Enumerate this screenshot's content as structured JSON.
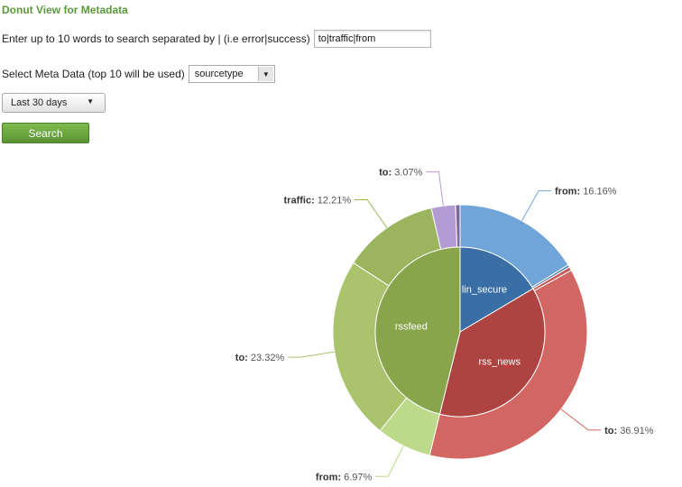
{
  "page": {
    "title": "Donut View for Metadata",
    "words_prompt": "Enter up to 10 words to search separated by | (i.e error|success)",
    "words_value": "to|traffic|from",
    "meta_prompt": "Select Meta Data (top 10 will be used)",
    "meta_selected": "sourcetype",
    "time_range": "Last 30 days",
    "search_label": "Search"
  },
  "chart_data": {
    "type": "pie",
    "variant": "donut",
    "inner": [
      {
        "label": "lin_secure",
        "value": 16.48,
        "color": "#3a6fa5"
      },
      {
        "label": "rss_news",
        "value": 37.38,
        "color": "#ad4441"
      },
      {
        "label": "rssfeed",
        "value": 46.14,
        "color": "#88a54b"
      }
    ],
    "outer": [
      {
        "parent": "lin_secure",
        "label": "from:",
        "pct": "16.16%",
        "value": 16.16,
        "color": "#6fa5d8",
        "show_label": true
      },
      {
        "parent": "lin_secure",
        "label": "",
        "pct": "",
        "value": 0.32,
        "color": "#4f7fb8",
        "show_label": false
      },
      {
        "parent": "rss_news",
        "label": "",
        "pct": "",
        "value": 0.47,
        "color": "#c85a57",
        "show_label": false
      },
      {
        "parent": "rss_news",
        "label": "to:",
        "pct": "36.91%",
        "value": 36.91,
        "color": "#d26663",
        "show_label": true
      },
      {
        "parent": "rssfeed",
        "label": "from:",
        "pct": "6.97%",
        "value": 6.97,
        "color": "#bdd98a",
        "show_label": true
      },
      {
        "parent": "rssfeed",
        "label": "to:",
        "pct": "23.32%",
        "value": 23.32,
        "color": "#a9c46d",
        "show_label": true
      },
      {
        "parent": "rssfeed",
        "label": "traffic:",
        "pct": "12.21%",
        "value": 12.21,
        "color": "#9ab55d",
        "show_label": true
      },
      {
        "parent": "rssfeed",
        "label": "to:",
        "pct": "3.07%",
        "value": 3.07,
        "color": "#b39bd3",
        "show_label": true
      },
      {
        "parent": "rssfeed",
        "label": "",
        "pct": "",
        "value": 0.57,
        "color": "#7c689c",
        "show_label": false
      }
    ]
  }
}
